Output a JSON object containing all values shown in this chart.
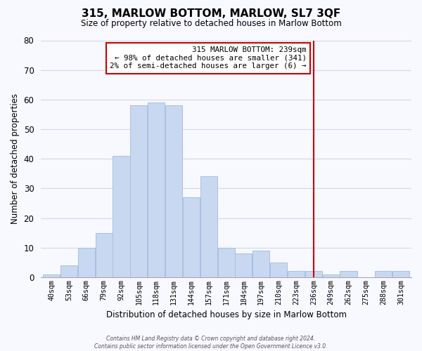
{
  "title": "315, MARLOW BOTTOM, MARLOW, SL7 3QF",
  "subtitle": "Size of property relative to detached houses in Marlow Bottom",
  "xlabel": "Distribution of detached houses by size in Marlow Bottom",
  "ylabel": "Number of detached properties",
  "bar_color": "#c8d8f0",
  "bar_edgecolor": "#a8c0e0",
  "bins": [
    "40sqm",
    "53sqm",
    "66sqm",
    "79sqm",
    "92sqm",
    "105sqm",
    "118sqm",
    "131sqm",
    "144sqm",
    "157sqm",
    "171sqm",
    "184sqm",
    "197sqm",
    "210sqm",
    "223sqm",
    "236sqm",
    "249sqm",
    "262sqm",
    "275sqm",
    "288sqm",
    "301sqm"
  ],
  "values": [
    1,
    4,
    10,
    15,
    41,
    58,
    59,
    58,
    27,
    34,
    10,
    8,
    9,
    5,
    2,
    2,
    1,
    2,
    0,
    2,
    2
  ],
  "vline_x": 15,
  "vline_color": "#cc0000",
  "annotation_title": "315 MARLOW BOTTOM: 239sqm",
  "annotation_line1": "← 98% of detached houses are smaller (341)",
  "annotation_line2": "2% of semi-detached houses are larger (6) →",
  "annotation_box_facecolor": "#ffffff",
  "annotation_box_edgecolor": "#cc0000",
  "ylim": [
    0,
    80
  ],
  "yticks": [
    0,
    10,
    20,
    30,
    40,
    50,
    60,
    70,
    80
  ],
  "footer_line1": "Contains HM Land Registry data © Crown copyright and database right 2024.",
  "footer_line2": "Contains public sector information licensed under the Open Government Licence v3.0.",
  "background_color": "#f8f8ff",
  "grid_color": "#d0d8e8"
}
